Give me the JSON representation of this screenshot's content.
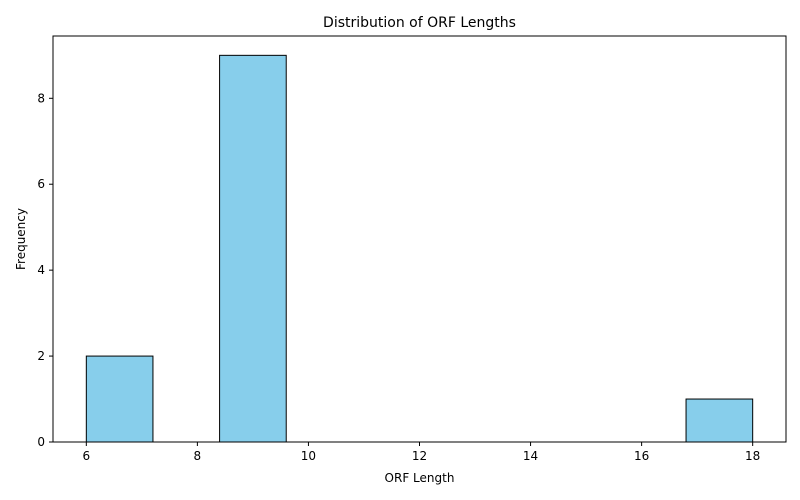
{
  "chart_data": {
    "type": "bar",
    "title": "Distribution of ORF Lengths",
    "xlabel": "ORF Length",
    "ylabel": "Frequency",
    "bins": [
      {
        "x0": 6.0,
        "x1": 7.2,
        "count": 2
      },
      {
        "x0": 7.2,
        "x1": 8.4,
        "count": 0
      },
      {
        "x0": 8.4,
        "x1": 9.6,
        "count": 9
      },
      {
        "x0": 9.6,
        "x1": 10.8,
        "count": 0
      },
      {
        "x0": 10.8,
        "x1": 12.0,
        "count": 0
      },
      {
        "x0": 12.0,
        "x1": 13.2,
        "count": 0
      },
      {
        "x0": 13.2,
        "x1": 14.4,
        "count": 0
      },
      {
        "x0": 14.4,
        "x1": 15.6,
        "count": 0
      },
      {
        "x0": 15.6,
        "x1": 16.8,
        "count": 0
      },
      {
        "x0": 16.8,
        "x1": 18.0,
        "count": 1
      }
    ],
    "xlim": [
      5.4,
      18.6
    ],
    "ylim": [
      0,
      9.45
    ],
    "xticks": [
      6,
      8,
      10,
      12,
      14,
      16,
      18
    ],
    "yticks": [
      0,
      2,
      4,
      6,
      8
    ],
    "grid": false,
    "bar_color": "#87ceeb",
    "edge_color": "#000000"
  }
}
